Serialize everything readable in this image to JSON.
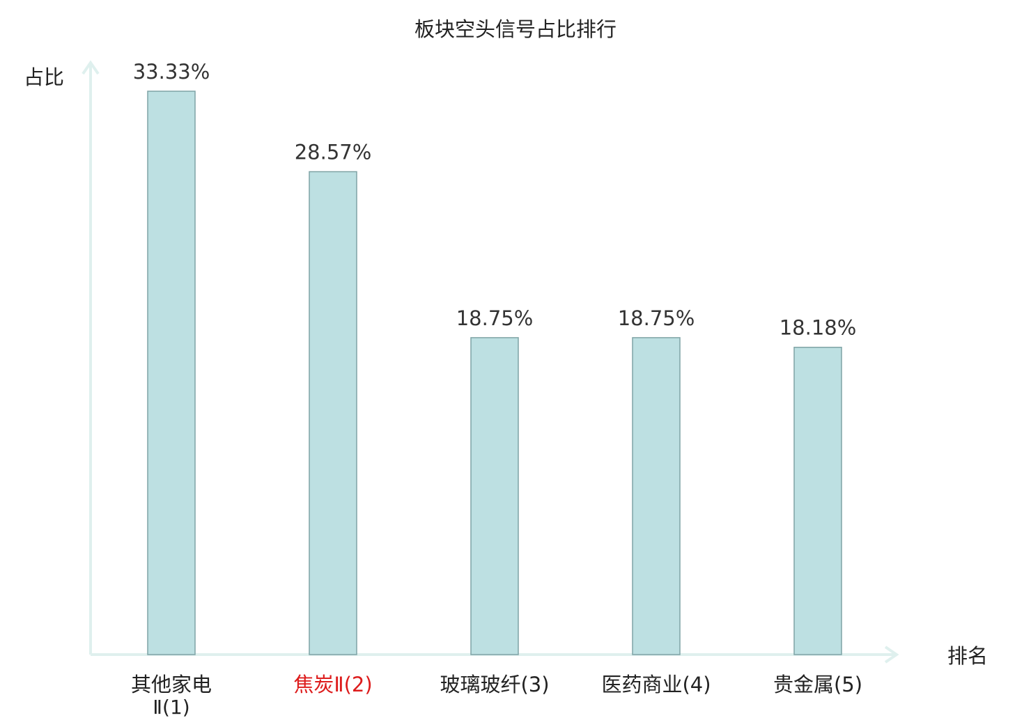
{
  "chart_data": {
    "type": "bar",
    "title": "板块空头信号占比排行",
    "ylabel": "占比",
    "xlabel": "排名",
    "ylim": [
      0,
      35
    ],
    "categories": [
      {
        "name": "其他家电",
        "rank_suffix": "Ⅱ(1)",
        "highlight": false
      },
      {
        "name": "焦炭",
        "rank_suffix": "Ⅱ(2)",
        "highlight": true
      },
      {
        "name": "玻璃玻纤",
        "rank_suffix": "(3)",
        "highlight": false
      },
      {
        "name": "医药商业",
        "rank_suffix": "(4)",
        "highlight": false
      },
      {
        "name": "贵金属",
        "rank_suffix": "(5)",
        "highlight": false
      }
    ],
    "values": [
      33.33,
      28.57,
      18.75,
      18.75,
      18.18
    ],
    "value_labels": [
      "33.33%",
      "28.57%",
      "18.75%",
      "18.75%",
      "18.18%"
    ],
    "colors": {
      "bar_fill": "#bde0e2",
      "bar_stroke": "#7fa3a5",
      "axis": "#dff0ee",
      "text": "#222222",
      "value_text": "#333333",
      "highlight": "#dd1c1c"
    }
  }
}
